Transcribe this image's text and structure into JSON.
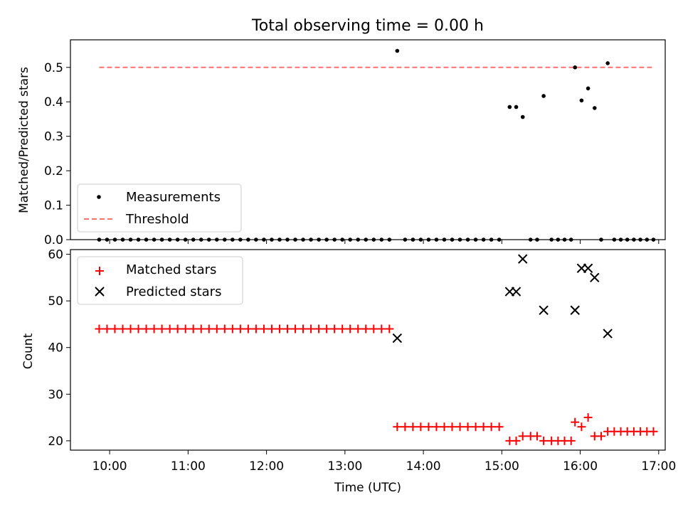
{
  "chart_data": [
    {
      "type": "scatter",
      "title": "Total observing time = 0.00 h",
      "xlabel": "",
      "ylabel": "Matched/Predicted stars",
      "ylim": [
        0,
        0.58
      ],
      "yticks": [
        0.0,
        0.1,
        0.2,
        0.3,
        0.4,
        0.5
      ],
      "ytick_labels": [
        "0.0",
        "0.1",
        "0.2",
        "0.3",
        "0.4",
        "0.5"
      ],
      "legend": {
        "placement": "lower-left"
      },
      "series": [
        {
          "name": "Measurements",
          "marker": "dot",
          "color": "#000000",
          "points": [
            {
              "x": "09:52",
              "y": 0.0
            },
            {
              "x": "09:58",
              "y": 0.0
            },
            {
              "x": "10:04",
              "y": 0.0
            },
            {
              "x": "10:10",
              "y": 0.0
            },
            {
              "x": "10:16",
              "y": 0.0
            },
            {
              "x": "10:22",
              "y": 0.0
            },
            {
              "x": "10:28",
              "y": 0.0
            },
            {
              "x": "10:34",
              "y": 0.0
            },
            {
              "x": "10:40",
              "y": 0.0
            },
            {
              "x": "10:46",
              "y": 0.0
            },
            {
              "x": "10:52",
              "y": 0.0
            },
            {
              "x": "10:58",
              "y": 0.0
            },
            {
              "x": "11:04",
              "y": 0.0
            },
            {
              "x": "11:10",
              "y": 0.0
            },
            {
              "x": "11:16",
              "y": 0.0
            },
            {
              "x": "11:22",
              "y": 0.0
            },
            {
              "x": "11:28",
              "y": 0.0
            },
            {
              "x": "11:34",
              "y": 0.0
            },
            {
              "x": "11:40",
              "y": 0.0
            },
            {
              "x": "11:46",
              "y": 0.0
            },
            {
              "x": "11:52",
              "y": 0.0
            },
            {
              "x": "11:58",
              "y": 0.0
            },
            {
              "x": "12:04",
              "y": 0.0
            },
            {
              "x": "12:10",
              "y": 0.0
            },
            {
              "x": "12:16",
              "y": 0.0
            },
            {
              "x": "12:22",
              "y": 0.0
            },
            {
              "x": "12:28",
              "y": 0.0
            },
            {
              "x": "12:34",
              "y": 0.0
            },
            {
              "x": "12:40",
              "y": 0.0
            },
            {
              "x": "12:46",
              "y": 0.0
            },
            {
              "x": "12:52",
              "y": 0.0
            },
            {
              "x": "12:58",
              "y": 0.0
            },
            {
              "x": "13:04",
              "y": 0.0
            },
            {
              "x": "13:10",
              "y": 0.0
            },
            {
              "x": "13:16",
              "y": 0.0
            },
            {
              "x": "13:22",
              "y": 0.0
            },
            {
              "x": "13:28",
              "y": 0.0
            },
            {
              "x": "13:34",
              "y": 0.0
            },
            {
              "x": "13:40",
              "y": 0.548
            },
            {
              "x": "13:46",
              "y": 0.0
            },
            {
              "x": "13:52",
              "y": 0.0
            },
            {
              "x": "13:58",
              "y": 0.0
            },
            {
              "x": "14:04",
              "y": 0.0
            },
            {
              "x": "14:10",
              "y": 0.0
            },
            {
              "x": "14:16",
              "y": 0.0
            },
            {
              "x": "14:22",
              "y": 0.0
            },
            {
              "x": "14:28",
              "y": 0.0
            },
            {
              "x": "14:34",
              "y": 0.0
            },
            {
              "x": "14:40",
              "y": 0.0
            },
            {
              "x": "14:46",
              "y": 0.0
            },
            {
              "x": "14:52",
              "y": 0.0
            },
            {
              "x": "14:58",
              "y": 0.0
            },
            {
              "x": "15:06",
              "y": 0.385
            },
            {
              "x": "15:11",
              "y": 0.385
            },
            {
              "x": "15:16",
              "y": 0.356
            },
            {
              "x": "15:22",
              "y": 0.0
            },
            {
              "x": "15:27",
              "y": 0.0
            },
            {
              "x": "15:32",
              "y": 0.417
            },
            {
              "x": "15:38",
              "y": 0.0
            },
            {
              "x": "15:43",
              "y": 0.0
            },
            {
              "x": "15:48",
              "y": 0.0
            },
            {
              "x": "15:53",
              "y": 0.0
            },
            {
              "x": "15:56",
              "y": 0.5
            },
            {
              "x": "16:01",
              "y": 0.404
            },
            {
              "x": "16:06",
              "y": 0.439
            },
            {
              "x": "16:11",
              "y": 0.382
            },
            {
              "x": "16:16",
              "y": 0.0
            },
            {
              "x": "16:21",
              "y": 0.512
            },
            {
              "x": "16:26",
              "y": 0.0
            },
            {
              "x": "16:31",
              "y": 0.0
            },
            {
              "x": "16:36",
              "y": 0.0
            },
            {
              "x": "16:41",
              "y": 0.0
            },
            {
              "x": "16:46",
              "y": 0.0
            },
            {
              "x": "16:51",
              "y": 0.0
            },
            {
              "x": "16:56",
              "y": 0.0
            }
          ]
        },
        {
          "name": "Threshold",
          "type": "line",
          "style": "dashed",
          "color": "#ff7070",
          "points": [
            {
              "x": "09:52",
              "y": 0.5
            },
            {
              "x": "16:56",
              "y": 0.5
            }
          ]
        }
      ]
    },
    {
      "type": "scatter",
      "title": "",
      "xlabel": "Time (UTC)",
      "ylabel": "Count",
      "ylim": [
        18,
        61
      ],
      "yticks": [
        20,
        30,
        40,
        50,
        60
      ],
      "ytick_labels": [
        "20",
        "30",
        "40",
        "50",
        "60"
      ],
      "xlim": [
        "09:30",
        "17:05"
      ],
      "xticks": [
        "10:00",
        "11:00",
        "12:00",
        "13:00",
        "14:00",
        "15:00",
        "16:00",
        "17:00"
      ],
      "legend": {
        "placement": "upper-left"
      },
      "series": [
        {
          "name": "Matched stars",
          "marker": "plus",
          "color": "#ff0000",
          "points": [
            {
              "x": "09:52",
              "y": 44
            },
            {
              "x": "09:58",
              "y": 44
            },
            {
              "x": "10:04",
              "y": 44
            },
            {
              "x": "10:10",
              "y": 44
            },
            {
              "x": "10:16",
              "y": 44
            },
            {
              "x": "10:22",
              "y": 44
            },
            {
              "x": "10:28",
              "y": 44
            },
            {
              "x": "10:34",
              "y": 44
            },
            {
              "x": "10:40",
              "y": 44
            },
            {
              "x": "10:46",
              "y": 44
            },
            {
              "x": "10:52",
              "y": 44
            },
            {
              "x": "10:58",
              "y": 44
            },
            {
              "x": "11:04",
              "y": 44
            },
            {
              "x": "11:10",
              "y": 44
            },
            {
              "x": "11:16",
              "y": 44
            },
            {
              "x": "11:22",
              "y": 44
            },
            {
              "x": "11:28",
              "y": 44
            },
            {
              "x": "11:34",
              "y": 44
            },
            {
              "x": "11:40",
              "y": 44
            },
            {
              "x": "11:46",
              "y": 44
            },
            {
              "x": "11:52",
              "y": 44
            },
            {
              "x": "11:58",
              "y": 44
            },
            {
              "x": "12:04",
              "y": 44
            },
            {
              "x": "12:10",
              "y": 44
            },
            {
              "x": "12:16",
              "y": 44
            },
            {
              "x": "12:22",
              "y": 44
            },
            {
              "x": "12:28",
              "y": 44
            },
            {
              "x": "12:34",
              "y": 44
            },
            {
              "x": "12:40",
              "y": 44
            },
            {
              "x": "12:46",
              "y": 44
            },
            {
              "x": "12:52",
              "y": 44
            },
            {
              "x": "12:58",
              "y": 44
            },
            {
              "x": "13:04",
              "y": 44
            },
            {
              "x": "13:10",
              "y": 44
            },
            {
              "x": "13:16",
              "y": 44
            },
            {
              "x": "13:22",
              "y": 44
            },
            {
              "x": "13:28",
              "y": 44
            },
            {
              "x": "13:34",
              "y": 44
            },
            {
              "x": "13:40",
              "y": 23
            },
            {
              "x": "13:46",
              "y": 23
            },
            {
              "x": "13:52",
              "y": 23
            },
            {
              "x": "13:58",
              "y": 23
            },
            {
              "x": "14:04",
              "y": 23
            },
            {
              "x": "14:10",
              "y": 23
            },
            {
              "x": "14:16",
              "y": 23
            },
            {
              "x": "14:22",
              "y": 23
            },
            {
              "x": "14:28",
              "y": 23
            },
            {
              "x": "14:34",
              "y": 23
            },
            {
              "x": "14:40",
              "y": 23
            },
            {
              "x": "14:46",
              "y": 23
            },
            {
              "x": "14:52",
              "y": 23
            },
            {
              "x": "14:58",
              "y": 23
            },
            {
              "x": "15:06",
              "y": 20
            },
            {
              "x": "15:11",
              "y": 20
            },
            {
              "x": "15:16",
              "y": 21
            },
            {
              "x": "15:22",
              "y": 21
            },
            {
              "x": "15:27",
              "y": 21
            },
            {
              "x": "15:32",
              "y": 20
            },
            {
              "x": "15:38",
              "y": 20
            },
            {
              "x": "15:43",
              "y": 20
            },
            {
              "x": "15:48",
              "y": 20
            },
            {
              "x": "15:53",
              "y": 20
            },
            {
              "x": "15:56",
              "y": 24
            },
            {
              "x": "16:01",
              "y": 23
            },
            {
              "x": "16:06",
              "y": 25
            },
            {
              "x": "16:11",
              "y": 21
            },
            {
              "x": "16:16",
              "y": 21
            },
            {
              "x": "16:21",
              "y": 22
            },
            {
              "x": "16:26",
              "y": 22
            },
            {
              "x": "16:31",
              "y": 22
            },
            {
              "x": "16:36",
              "y": 22
            },
            {
              "x": "16:41",
              "y": 22
            },
            {
              "x": "16:46",
              "y": 22
            },
            {
              "x": "16:51",
              "y": 22
            },
            {
              "x": "16:56",
              "y": 22
            }
          ]
        },
        {
          "name": "Predicted stars",
          "marker": "x",
          "color": "#000000",
          "points": [
            {
              "x": "13:40",
              "y": 42
            },
            {
              "x": "15:06",
              "y": 52
            },
            {
              "x": "15:11",
              "y": 52
            },
            {
              "x": "15:16",
              "y": 59
            },
            {
              "x": "15:32",
              "y": 48
            },
            {
              "x": "15:56",
              "y": 48
            },
            {
              "x": "16:01",
              "y": 57
            },
            {
              "x": "16:06",
              "y": 57
            },
            {
              "x": "16:11",
              "y": 55
            },
            {
              "x": "16:21",
              "y": 43
            }
          ]
        }
      ]
    }
  ]
}
